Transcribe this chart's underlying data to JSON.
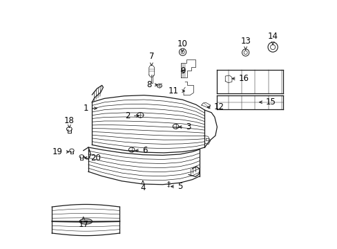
{
  "bg_color": "#ffffff",
  "lc": "#1a1a1a",
  "fs": 8.5,
  "parts": [
    {
      "id": "1",
      "pt": [
        0.22,
        0.565
      ],
      "lbl": [
        0.175,
        0.565
      ],
      "ha": "right"
    },
    {
      "id": "2",
      "pt": [
        0.39,
        0.535
      ],
      "lbl": [
        0.345,
        0.535
      ],
      "ha": "right"
    },
    {
      "id": "3",
      "pt": [
        0.53,
        0.49
      ],
      "lbl": [
        0.568,
        0.49
      ],
      "ha": "left"
    },
    {
      "id": "4",
      "pt": [
        0.395,
        0.275
      ],
      "lbl": [
        0.395,
        0.245
      ],
      "ha": "center"
    },
    {
      "id": "5",
      "pt": [
        0.498,
        0.25
      ],
      "lbl": [
        0.535,
        0.25
      ],
      "ha": "left"
    },
    {
      "id": "6",
      "pt": [
        0.355,
        0.395
      ],
      "lbl": [
        0.393,
        0.395
      ],
      "ha": "left"
    },
    {
      "id": "7",
      "pt": [
        0.43,
        0.735
      ],
      "lbl": [
        0.43,
        0.775
      ],
      "ha": "center"
    },
    {
      "id": "8",
      "pt": [
        0.465,
        0.66
      ],
      "lbl": [
        0.43,
        0.66
      ],
      "ha": "right"
    },
    {
      "id": "9",
      "pt": [
        0.548,
        0.715
      ],
      "lbl": [
        0.548,
        0.715
      ],
      "ha": "left"
    },
    {
      "id": "10",
      "pt": [
        0.555,
        0.79
      ],
      "lbl": [
        0.555,
        0.825
      ],
      "ha": "center"
    },
    {
      "id": "11",
      "pt": [
        0.575,
        0.635
      ],
      "lbl": [
        0.54,
        0.635
      ],
      "ha": "right"
    },
    {
      "id": "12",
      "pt": [
        0.645,
        0.57
      ],
      "lbl": [
        0.682,
        0.57
      ],
      "ha": "left"
    },
    {
      "id": "13",
      "pt": [
        0.81,
        0.8
      ],
      "lbl": [
        0.81,
        0.835
      ],
      "ha": "center"
    },
    {
      "id": "14",
      "pt": [
        0.92,
        0.82
      ],
      "lbl": [
        0.92,
        0.855
      ],
      "ha": "center"
    },
    {
      "id": "15",
      "pt": [
        0.855,
        0.59
      ],
      "lbl": [
        0.892,
        0.59
      ],
      "ha": "left"
    },
    {
      "id": "16",
      "pt": [
        0.745,
        0.685
      ],
      "lbl": [
        0.782,
        0.685
      ],
      "ha": "left"
    },
    {
      "id": "17",
      "pt": [
        0.155,
        0.13
      ],
      "lbl": [
        0.155,
        0.098
      ],
      "ha": "center"
    },
    {
      "id": "18",
      "pt": [
        0.098,
        0.485
      ],
      "lbl": [
        0.098,
        0.515
      ],
      "ha": "center"
    },
    {
      "id": "19",
      "pt": [
        0.108,
        0.39
      ],
      "lbl": [
        0.072,
        0.39
      ],
      "ha": "right"
    },
    {
      "id": "20",
      "pt": [
        0.148,
        0.365
      ],
      "lbl": [
        0.185,
        0.365
      ],
      "ha": "left"
    }
  ]
}
